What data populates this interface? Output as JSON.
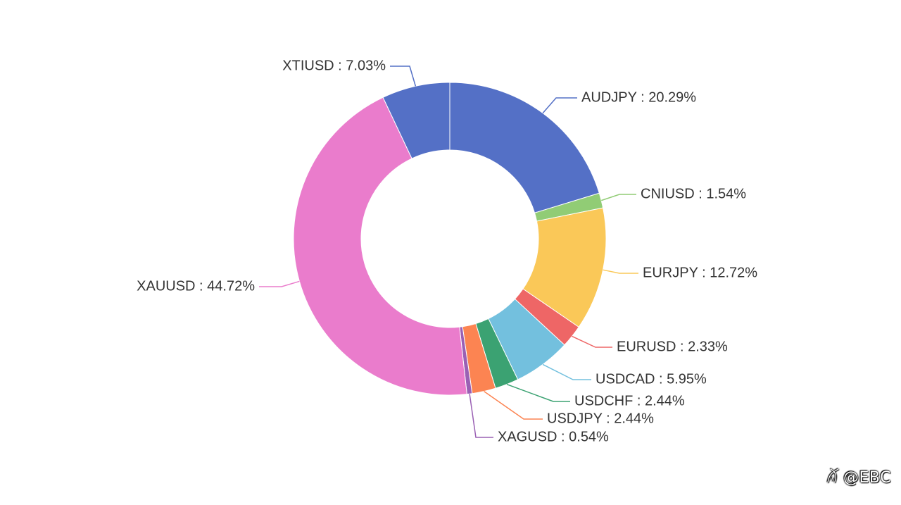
{
  "chart_data": {
    "type": "pie",
    "variant": "donut",
    "title": "",
    "slices": [
      {
        "name": "AUDJPY",
        "value": 20.29,
        "label": "AUDJPY : 20.29%",
        "color": "#5470c6"
      },
      {
        "name": "CNIUSD",
        "value": 1.54,
        "label": "CNIUSD : 1.54%",
        "color": "#91cc75"
      },
      {
        "name": "EURJPY",
        "value": 12.72,
        "label": "EURJPY : 12.72%",
        "color": "#fac858"
      },
      {
        "name": "EURUSD",
        "value": 2.33,
        "label": "EURUSD : 2.33%",
        "color": "#ee6666"
      },
      {
        "name": "USDCAD",
        "value": 5.95,
        "label": "USDCAD : 5.95%",
        "color": "#73c0de"
      },
      {
        "name": "USDCHF",
        "value": 2.44,
        "label": "USDCHF : 2.44%",
        "color": "#3ba272"
      },
      {
        "name": "USDJPY",
        "value": 2.44,
        "label": "USDJPY : 2.44%",
        "color": "#fc8452"
      },
      {
        "name": "XAGUSD",
        "value": 0.54,
        "label": "XAGUSD : 0.54%",
        "color": "#9a60b4"
      },
      {
        "name": "XAUUSD",
        "value": 44.72,
        "label": "XAUUSD : 44.72%",
        "color": "#ea7ccc"
      },
      {
        "name": "XTIUSD",
        "value": 7.03,
        "label": "XTIUSD : 7.03%",
        "color": "#5470c6"
      }
    ]
  },
  "watermark": {
    "logo": "ꊼ",
    "text": "@EBC"
  }
}
